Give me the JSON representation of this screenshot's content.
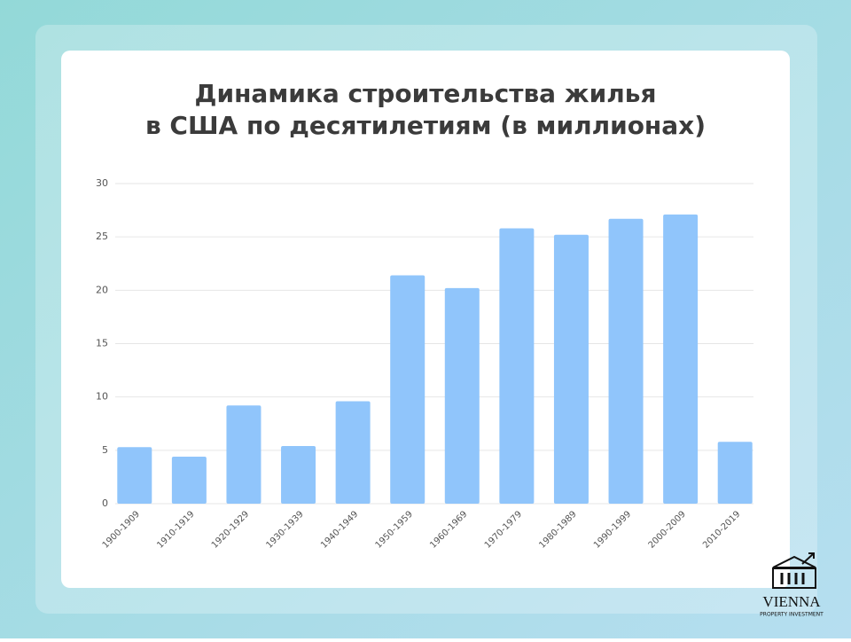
{
  "chart_data": {
    "type": "bar",
    "title": [
      "Динамика строительства жилья",
      "в США по десятилетиям (в миллионах)"
    ],
    "categories": [
      "1900-1909",
      "1910-1919",
      "1920-1929",
      "1930-1939",
      "1940-1949",
      "1950-1959",
      "1960-1969",
      "1970-1979",
      "1980-1989",
      "1990-1999",
      "2000-2009",
      "2010-2019"
    ],
    "values": [
      5.3,
      4.4,
      9.2,
      5.4,
      9.6,
      21.4,
      20.2,
      25.8,
      25.2,
      26.7,
      27.1,
      5.8
    ],
    "color": "#90c5fb",
    "ylim": [
      0,
      30
    ],
    "yticks": [
      0,
      5,
      10,
      15,
      20,
      25,
      30
    ],
    "grid": true
  },
  "logo": {
    "name": "VIENNA",
    "tagline": "PROPERTY INVESTMENT"
  }
}
